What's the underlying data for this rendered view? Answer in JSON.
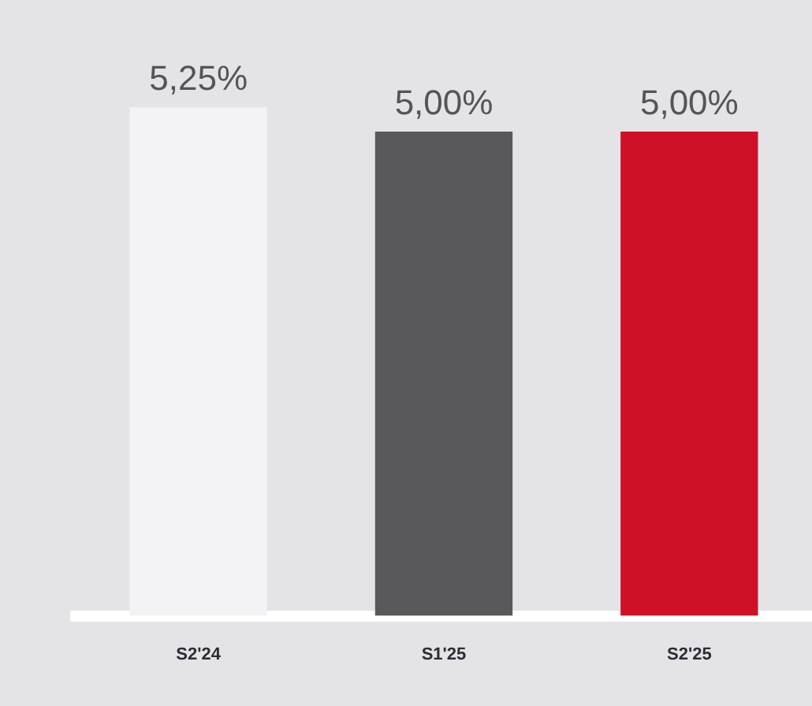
{
  "chart_data": {
    "type": "bar",
    "categories": [
      "S2'24",
      "S1'25",
      "S2'25"
    ],
    "values": [
      5.25,
      5.0,
      5.0
    ],
    "colors": [
      "#f3f3f5",
      "#59595c",
      "#cf1128"
    ],
    "value_labels": [
      "5,25%",
      "5,00%",
      "5,00%"
    ],
    "relative": false,
    "grid": false,
    "legend": false
  }
}
